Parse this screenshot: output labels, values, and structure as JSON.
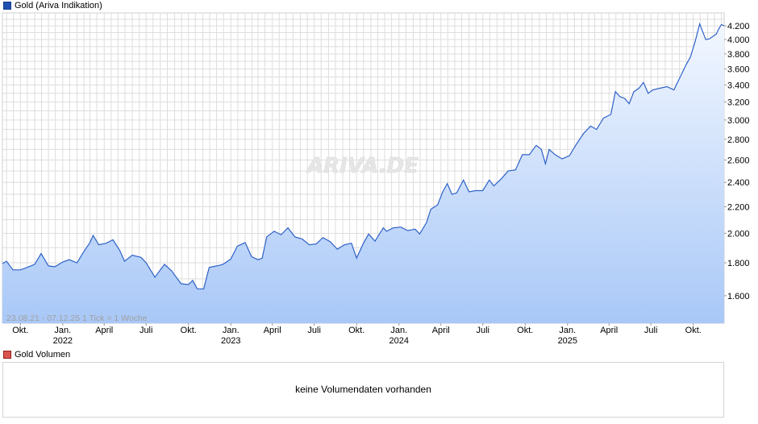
{
  "legend_main": {
    "label": "Gold (Ariva Indikation)",
    "color": "#1f4fb0"
  },
  "legend_volume": {
    "label": "Gold Volumen",
    "color": "#d9534f"
  },
  "watermark": "ARIVA.DE",
  "range_note": "23.08.21 - 07.12.25   1 Tick = 1 Woche",
  "volume_message": "keine Volumendaten vorhanden",
  "colors": {
    "line": "#2f62c8",
    "fill_top": "#f2f7ff",
    "fill_bottom": "#a9c8f7",
    "grid": "#dddddd"
  },
  "chart_data": {
    "type": "area",
    "y_scale": "log",
    "ylim": [
      1450,
      4400
    ],
    "y_ticks": [
      {
        "v": 1600,
        "label": "1.600"
      },
      {
        "v": 1800,
        "label": "1.800"
      },
      {
        "v": 2000,
        "label": "2.000"
      },
      {
        "v": 2200,
        "label": "2.200"
      },
      {
        "v": 2400,
        "label": "2.400"
      },
      {
        "v": 2600,
        "label": "2.600"
      },
      {
        "v": 2800,
        "label": "2.800"
      },
      {
        "v": 3000,
        "label": "3.000"
      },
      {
        "v": 3200,
        "label": "3.200"
      },
      {
        "v": 3400,
        "label": "3.400"
      },
      {
        "v": 3600,
        "label": "3.600"
      },
      {
        "v": 3800,
        "label": "3.800"
      },
      {
        "v": 4000,
        "label": "4.000"
      },
      {
        "v": 4200,
        "label": "4.200"
      }
    ],
    "x_start": "2021-08-23",
    "x_end": "2025-12-07",
    "x_ticks": [
      {
        "date": "2021-10-01",
        "label": "Okt.",
        "year": ""
      },
      {
        "date": "2022-01-01",
        "label": "Jan.",
        "year": "2022"
      },
      {
        "date": "2022-04-01",
        "label": "April",
        "year": ""
      },
      {
        "date": "2022-07-01",
        "label": "Juli",
        "year": ""
      },
      {
        "date": "2022-10-01",
        "label": "Okt.",
        "year": ""
      },
      {
        "date": "2023-01-01",
        "label": "Jan.",
        "year": "2023"
      },
      {
        "date": "2023-04-01",
        "label": "April",
        "year": ""
      },
      {
        "date": "2023-07-01",
        "label": "Juli",
        "year": ""
      },
      {
        "date": "2023-10-01",
        "label": "Okt.",
        "year": ""
      },
      {
        "date": "2024-01-01",
        "label": "Jan.",
        "year": "2024"
      },
      {
        "date": "2024-04-01",
        "label": "April",
        "year": ""
      },
      {
        "date": "2024-07-01",
        "label": "Juli",
        "year": ""
      },
      {
        "date": "2024-10-01",
        "label": "Okt.",
        "year": ""
      },
      {
        "date": "2025-01-01",
        "label": "Jan.",
        "year": "2025"
      },
      {
        "date": "2025-04-01",
        "label": "April",
        "year": ""
      },
      {
        "date": "2025-07-01",
        "label": "Juli",
        "year": ""
      },
      {
        "date": "2025-10-01",
        "label": "Okt.",
        "year": ""
      }
    ],
    "grid": true,
    "series": [
      {
        "values": [
          [
            "2021-08-23",
            1795
          ],
          [
            "2021-09-01",
            1810
          ],
          [
            "2021-09-15",
            1755
          ],
          [
            "2021-10-01",
            1755
          ],
          [
            "2021-10-15",
            1770
          ],
          [
            "2021-11-01",
            1790
          ],
          [
            "2021-11-15",
            1860
          ],
          [
            "2021-12-01",
            1780
          ],
          [
            "2021-12-15",
            1775
          ],
          [
            "2022-01-01",
            1805
          ],
          [
            "2022-01-15",
            1820
          ],
          [
            "2022-02-01",
            1800
          ],
          [
            "2022-02-15",
            1870
          ],
          [
            "2022-03-01",
            1935
          ],
          [
            "2022-03-08",
            1985
          ],
          [
            "2022-03-20",
            1920
          ],
          [
            "2022-04-05",
            1930
          ],
          [
            "2022-04-20",
            1955
          ],
          [
            "2022-05-05",
            1880
          ],
          [
            "2022-05-15",
            1810
          ],
          [
            "2022-06-01",
            1850
          ],
          [
            "2022-06-20",
            1835
          ],
          [
            "2022-07-01",
            1800
          ],
          [
            "2022-07-20",
            1710
          ],
          [
            "2022-08-10",
            1790
          ],
          [
            "2022-08-25",
            1750
          ],
          [
            "2022-09-15",
            1670
          ],
          [
            "2022-10-01",
            1665
          ],
          [
            "2022-10-10",
            1690
          ],
          [
            "2022-10-20",
            1640
          ],
          [
            "2022-11-03",
            1640
          ],
          [
            "2022-11-15",
            1770
          ],
          [
            "2022-12-01",
            1780
          ],
          [
            "2022-12-15",
            1790
          ],
          [
            "2023-01-01",
            1825
          ],
          [
            "2023-01-15",
            1910
          ],
          [
            "2023-02-01",
            1935
          ],
          [
            "2023-02-15",
            1840
          ],
          [
            "2023-03-01",
            1820
          ],
          [
            "2023-03-10",
            1830
          ],
          [
            "2023-03-20",
            1975
          ],
          [
            "2023-04-05",
            2015
          ],
          [
            "2023-04-20",
            1990
          ],
          [
            "2023-05-05",
            2040
          ],
          [
            "2023-05-20",
            1975
          ],
          [
            "2023-06-05",
            1960
          ],
          [
            "2023-06-20",
            1920
          ],
          [
            "2023-07-05",
            1925
          ],
          [
            "2023-07-20",
            1970
          ],
          [
            "2023-08-05",
            1940
          ],
          [
            "2023-08-20",
            1890
          ],
          [
            "2023-09-05",
            1920
          ],
          [
            "2023-09-20",
            1930
          ],
          [
            "2023-10-01",
            1830
          ],
          [
            "2023-10-15",
            1925
          ],
          [
            "2023-10-27",
            1995
          ],
          [
            "2023-11-10",
            1945
          ],
          [
            "2023-11-28",
            2040
          ],
          [
            "2023-12-05",
            2015
          ],
          [
            "2023-12-20",
            2040
          ],
          [
            "2024-01-05",
            2045
          ],
          [
            "2024-01-20",
            2020
          ],
          [
            "2024-02-05",
            2030
          ],
          [
            "2024-02-15",
            1995
          ],
          [
            "2024-03-01",
            2080
          ],
          [
            "2024-03-10",
            2180
          ],
          [
            "2024-03-25",
            2215
          ],
          [
            "2024-04-05",
            2320
          ],
          [
            "2024-04-15",
            2390
          ],
          [
            "2024-04-25",
            2300
          ],
          [
            "2024-05-05",
            2310
          ],
          [
            "2024-05-20",
            2420
          ],
          [
            "2024-06-01",
            2320
          ],
          [
            "2024-06-15",
            2330
          ],
          [
            "2024-07-01",
            2330
          ],
          [
            "2024-07-15",
            2420
          ],
          [
            "2024-07-25",
            2370
          ],
          [
            "2024-08-10",
            2430
          ],
          [
            "2024-08-25",
            2500
          ],
          [
            "2024-09-10",
            2510
          ],
          [
            "2024-09-25",
            2650
          ],
          [
            "2024-10-10",
            2650
          ],
          [
            "2024-10-25",
            2740
          ],
          [
            "2024-11-05",
            2700
          ],
          [
            "2024-11-14",
            2565
          ],
          [
            "2024-11-22",
            2700
          ],
          [
            "2024-12-05",
            2650
          ],
          [
            "2024-12-20",
            2610
          ],
          [
            "2025-01-05",
            2640
          ],
          [
            "2025-01-20",
            2750
          ],
          [
            "2025-02-05",
            2860
          ],
          [
            "2025-02-20",
            2935
          ],
          [
            "2025-03-05",
            2900
          ],
          [
            "2025-03-20",
            3020
          ],
          [
            "2025-04-05",
            3060
          ],
          [
            "2025-04-15",
            3320
          ],
          [
            "2025-04-25",
            3260
          ],
          [
            "2025-05-05",
            3240
          ],
          [
            "2025-05-15",
            3180
          ],
          [
            "2025-05-25",
            3320
          ],
          [
            "2025-06-05",
            3360
          ],
          [
            "2025-06-15",
            3430
          ],
          [
            "2025-06-25",
            3300
          ],
          [
            "2025-07-05",
            3340
          ],
          [
            "2025-07-20",
            3360
          ],
          [
            "2025-08-05",
            3380
          ],
          [
            "2025-08-20",
            3340
          ],
          [
            "2025-09-01",
            3480
          ],
          [
            "2025-09-15",
            3650
          ],
          [
            "2025-09-25",
            3760
          ],
          [
            "2025-10-05",
            3970
          ],
          [
            "2025-10-15",
            4230
          ],
          [
            "2025-10-28",
            4000
          ],
          [
            "2025-11-05",
            4010
          ],
          [
            "2025-11-20",
            4080
          ],
          [
            "2025-11-25",
            4150
          ],
          [
            "2025-12-01",
            4220
          ],
          [
            "2025-12-07",
            4200
          ]
        ]
      }
    ]
  }
}
